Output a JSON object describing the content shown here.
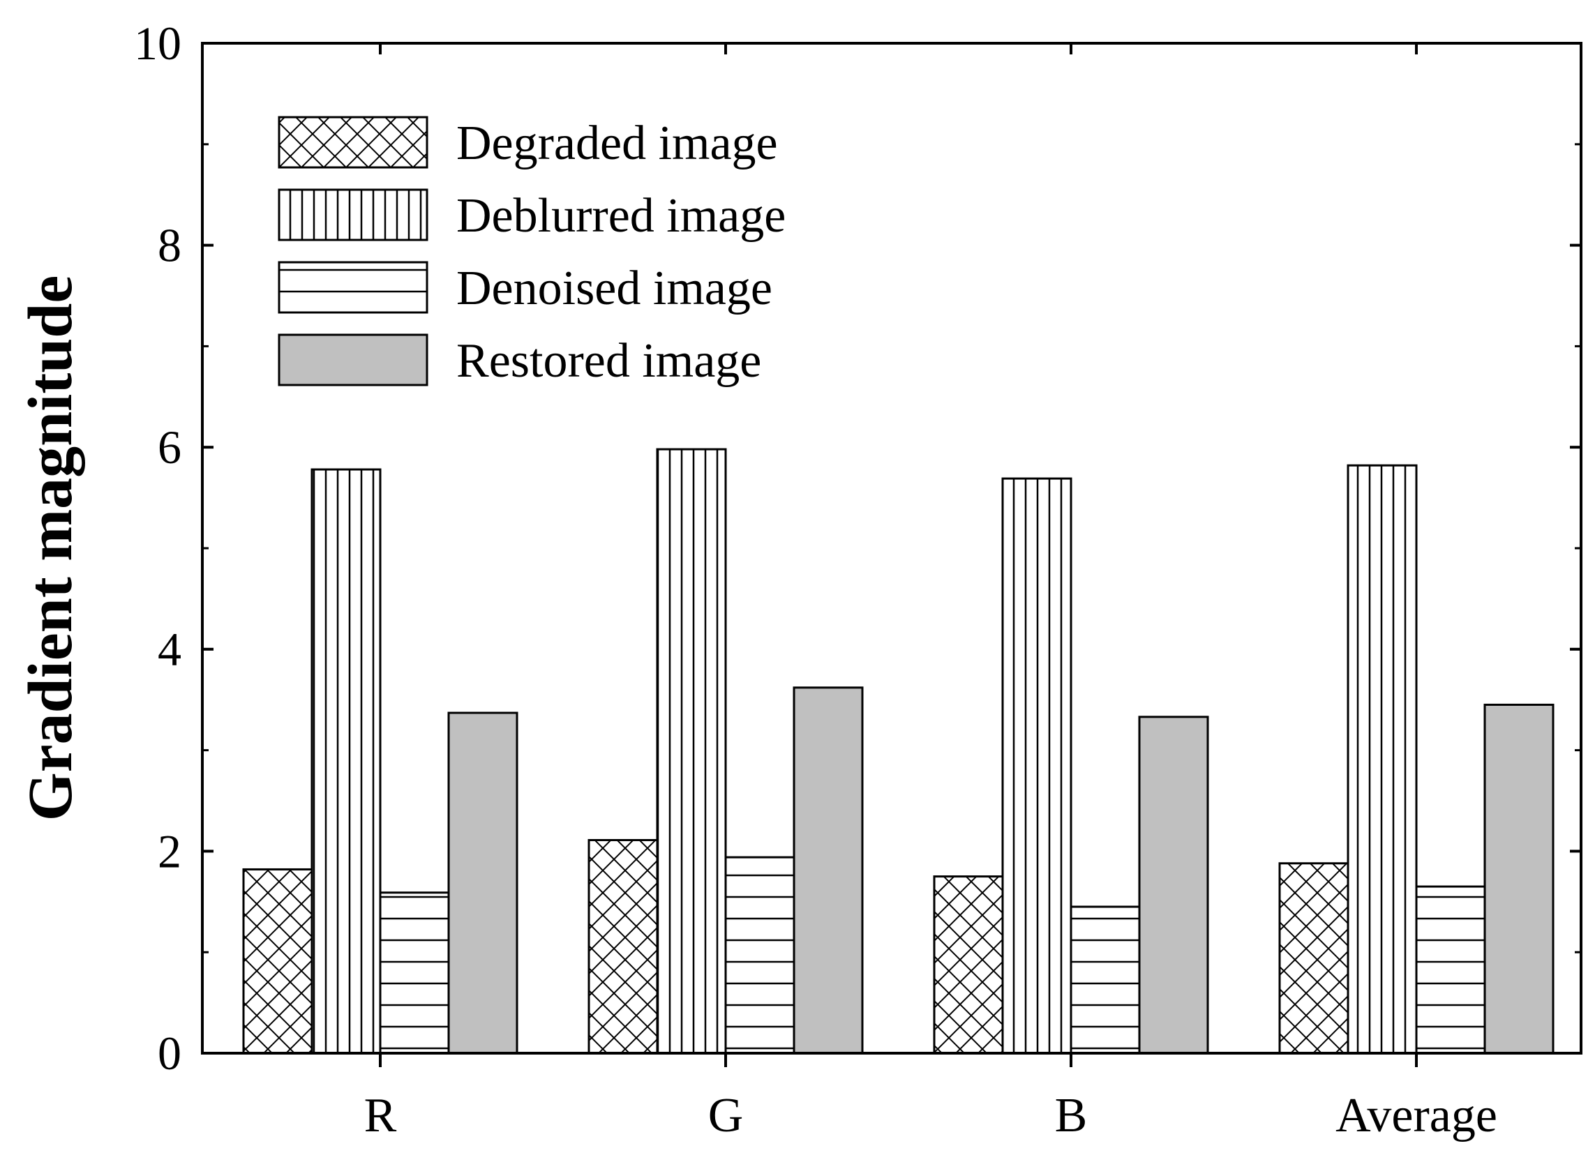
{
  "chart_data": {
    "type": "bar",
    "categories": [
      "R",
      "G",
      "B",
      "Average"
    ],
    "series": [
      {
        "name": "Degraded image",
        "values": [
          1.82,
          2.11,
          1.75,
          1.88
        ],
        "pattern": "crosshatch",
        "color": "#ffffff"
      },
      {
        "name": "Deblurred image",
        "values": [
          5.78,
          5.98,
          5.69,
          5.82
        ],
        "pattern": "vertical",
        "color": "#ffffff"
      },
      {
        "name": "Denoised image",
        "values": [
          1.59,
          1.94,
          1.45,
          1.65
        ],
        "pattern": "horizontal",
        "color": "#ffffff"
      },
      {
        "name": "Restored image",
        "values": [
          3.37,
          3.62,
          3.33,
          3.45
        ],
        "pattern": "solid",
        "color": "#c0c0c0"
      }
    ],
    "title": "",
    "xlabel": "",
    "ylabel": "Gradient magnitude",
    "ylim": [
      0,
      10
    ],
    "yticks": [
      0,
      2,
      4,
      6,
      8,
      10
    ],
    "ytick_labels": [
      "0",
      "2",
      "4",
      "6",
      "8",
      "10"
    ],
    "grid": false,
    "legend_position": "top-left"
  }
}
